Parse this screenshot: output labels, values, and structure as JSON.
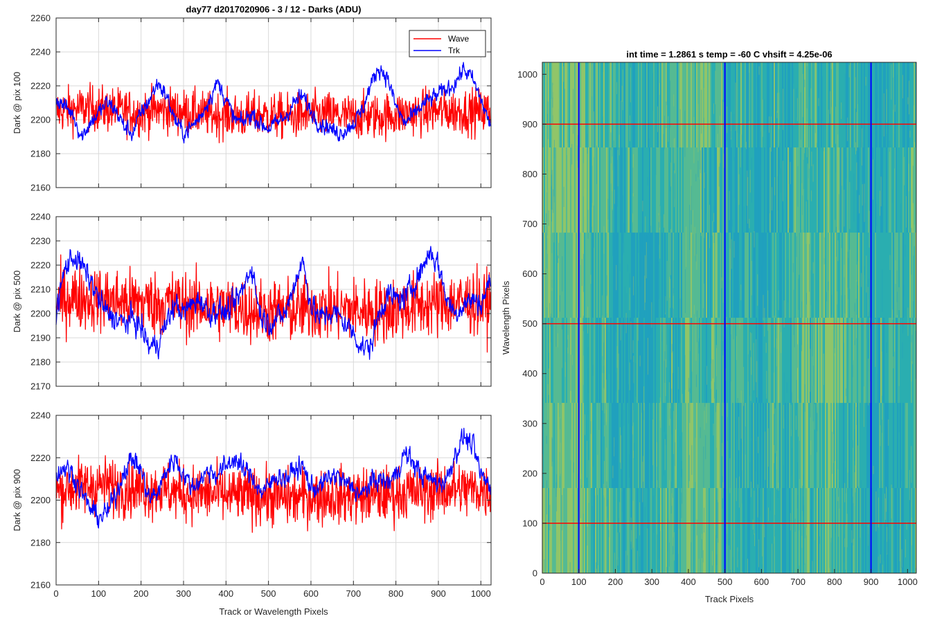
{
  "chart_data": [
    {
      "type": "line",
      "title": "day77 d2017020906 - 3 / 12 - Darks (ADU)",
      "ylabel": "Dark @ pix 100",
      "xlabel": "",
      "xlim": [
        0,
        1024
      ],
      "ylim": [
        2160,
        2260
      ],
      "xticks": [
        0,
        100,
        200,
        300,
        400,
        500,
        600,
        700,
        800,
        900,
        1000
      ],
      "yticks": [
        2160,
        2180,
        2200,
        2220,
        2240,
        2260
      ],
      "show_xticklabels": false,
      "grid": true,
      "legend": {
        "placement": "top-right",
        "entries": [
          "Wave",
          "Trk"
        ]
      },
      "series": [
        {
          "name": "Wave",
          "color": "#ff0000",
          "x": [
            0,
            40,
            80,
            120,
            160,
            200,
            240,
            280,
            320,
            360,
            400,
            440,
            480,
            520,
            560,
            600,
            640,
            680,
            720,
            760,
            800,
            840,
            880,
            920,
            960,
            1000,
            1023
          ],
          "y": [
            2205,
            2206,
            2207,
            2206,
            2205,
            2204,
            2206,
            2205,
            2204,
            2203,
            2203,
            2202,
            2203,
            2202,
            2202,
            2203,
            2203,
            2202,
            2202,
            2202,
            2203,
            2204,
            2205,
            2205,
            2205,
            2205,
            2205
          ]
        },
        {
          "name": "Trk",
          "color": "#0000ff",
          "x": [
            0,
            20,
            40,
            60,
            80,
            100,
            120,
            140,
            160,
            180,
            200,
            220,
            240,
            260,
            280,
            300,
            320,
            340,
            360,
            380,
            400,
            420,
            440,
            460,
            480,
            500,
            520,
            540,
            560,
            580,
            600,
            620,
            640,
            660,
            680,
            700,
            720,
            740,
            760,
            780,
            800,
            820,
            840,
            860,
            880,
            900,
            920,
            940,
            960,
            980,
            1000,
            1023
          ],
          "y": [
            2212,
            2208,
            2203,
            2190,
            2198,
            2204,
            2210,
            2206,
            2196,
            2192,
            2204,
            2212,
            2222,
            2214,
            2200,
            2192,
            2196,
            2202,
            2212,
            2222,
            2212,
            2200,
            2198,
            2204,
            2198,
            2195,
            2198,
            2202,
            2210,
            2214,
            2205,
            2198,
            2196,
            2192,
            2194,
            2198,
            2205,
            2220,
            2231,
            2225,
            2208,
            2198,
            2202,
            2208,
            2212,
            2215,
            2218,
            2222,
            2230,
            2224,
            2212,
            2196
          ]
        }
      ]
    },
    {
      "type": "line",
      "ylabel": "Dark @ pix 500",
      "xlabel": "",
      "xlim": [
        0,
        1024
      ],
      "ylim": [
        2170,
        2240
      ],
      "xticks": [
        0,
        100,
        200,
        300,
        400,
        500,
        600,
        700,
        800,
        900,
        1000
      ],
      "yticks": [
        2170,
        2180,
        2190,
        2200,
        2210,
        2220,
        2230,
        2240
      ],
      "show_xticklabels": false,
      "grid": true,
      "series": [
        {
          "name": "Wave",
          "color": "#ff0000",
          "x": [
            0,
            40,
            80,
            120,
            160,
            200,
            240,
            280,
            320,
            360,
            400,
            440,
            480,
            520,
            560,
            600,
            640,
            680,
            720,
            760,
            800,
            840,
            880,
            920,
            960,
            1000,
            1023
          ],
          "y": [
            2205,
            2207,
            2206,
            2206,
            2205,
            2205,
            2204,
            2205,
            2203,
            2203,
            2202,
            2202,
            2201,
            2201,
            2201,
            2202,
            2202,
            2202,
            2201,
            2201,
            2202,
            2203,
            2204,
            2204,
            2205,
            2204,
            2204
          ]
        },
        {
          "name": "Trk",
          "color": "#0000ff",
          "x": [
            0,
            20,
            40,
            60,
            80,
            100,
            120,
            140,
            160,
            180,
            200,
            220,
            240,
            260,
            280,
            300,
            320,
            340,
            360,
            380,
            400,
            420,
            440,
            460,
            480,
            500,
            520,
            540,
            560,
            580,
            600,
            620,
            640,
            660,
            680,
            700,
            720,
            740,
            760,
            780,
            800,
            820,
            840,
            860,
            880,
            900,
            920,
            940,
            960,
            980,
            1000,
            1023
          ],
          "y": [
            2200,
            2218,
            2224,
            2220,
            2214,
            2206,
            2200,
            2198,
            2196,
            2198,
            2194,
            2186,
            2188,
            2196,
            2204,
            2200,
            2204,
            2206,
            2200,
            2202,
            2200,
            2204,
            2210,
            2220,
            2200,
            2196,
            2198,
            2200,
            2212,
            2222,
            2204,
            2198,
            2200,
            2200,
            2196,
            2192,
            2186,
            2186,
            2200,
            2208,
            2206,
            2206,
            2212,
            2218,
            2226,
            2220,
            2206,
            2200,
            2204,
            2206,
            2204,
            2214
          ]
        }
      ]
    },
    {
      "type": "line",
      "ylabel": "Dark @ pix 900",
      "xlabel": "Track or Wavelength Pixels",
      "xlim": [
        0,
        1024
      ],
      "ylim": [
        2160,
        2240
      ],
      "xticks": [
        0,
        100,
        200,
        300,
        400,
        500,
        600,
        700,
        800,
        900,
        1000
      ],
      "yticks": [
        2160,
        2180,
        2200,
        2220,
        2240
      ],
      "show_xticklabels": true,
      "grid": true,
      "series": [
        {
          "name": "Wave",
          "color": "#ff0000",
          "x": [
            0,
            40,
            80,
            120,
            160,
            200,
            240,
            280,
            320,
            360,
            400,
            440,
            480,
            520,
            560,
            600,
            640,
            680,
            720,
            760,
            800,
            840,
            880,
            920,
            960,
            1000,
            1023
          ],
          "y": [
            2204,
            2206,
            2207,
            2207,
            2206,
            2205,
            2205,
            2204,
            2203,
            2203,
            2202,
            2202,
            2202,
            2201,
            2201,
            2202,
            2202,
            2202,
            2202,
            2202,
            2203,
            2204,
            2204,
            2205,
            2205,
            2205,
            2204
          ]
        },
        {
          "name": "Trk",
          "color": "#0000ff",
          "x": [
            0,
            20,
            40,
            60,
            80,
            100,
            120,
            140,
            160,
            180,
            200,
            220,
            240,
            260,
            280,
            300,
            320,
            340,
            360,
            380,
            400,
            420,
            440,
            460,
            480,
            500,
            520,
            540,
            560,
            580,
            600,
            620,
            640,
            660,
            680,
            700,
            720,
            740,
            760,
            780,
            800,
            820,
            840,
            860,
            880,
            900,
            920,
            940,
            960,
            980,
            1000,
            1023
          ],
          "y": [
            2212,
            2216,
            2212,
            2204,
            2196,
            2192,
            2194,
            2202,
            2214,
            2220,
            2214,
            2200,
            2204,
            2214,
            2220,
            2212,
            2206,
            2210,
            2214,
            2212,
            2216,
            2220,
            2214,
            2212,
            2204,
            2206,
            2212,
            2210,
            2214,
            2216,
            2206,
            2206,
            2210,
            2212,
            2208,
            2206,
            2202,
            2208,
            2210,
            2208,
            2212,
            2222,
            2218,
            2212,
            2210,
            2208,
            2210,
            2222,
            2230,
            2226,
            2212,
            2206
          ]
        }
      ]
    },
    {
      "type": "heatmap",
      "title": "int time = 1.2861 s    temp = -60 C    vhsift = 4.25e-06",
      "xlabel": "Track Pixels",
      "ylabel": "Wavelength Pixels",
      "xlim": [
        0,
        1024
      ],
      "ylim": [
        0,
        1024
      ],
      "xticks": [
        0,
        100,
        200,
        300,
        400,
        500,
        600,
        700,
        800,
        900,
        1000
      ],
      "yticks": [
        0,
        100,
        200,
        300,
        400,
        500,
        600,
        700,
        800,
        900,
        1000
      ],
      "colormap": [
        "#1f9fc0",
        "#2aaeb0",
        "#5cbc8e",
        "#9fc85f"
      ],
      "vertical_lines": {
        "color": "#0000ff",
        "x": [
          100,
          500,
          900
        ]
      },
      "horizontal_lines": {
        "color": "#ff0000",
        "y": [
          100,
          500,
          900
        ]
      }
    }
  ]
}
